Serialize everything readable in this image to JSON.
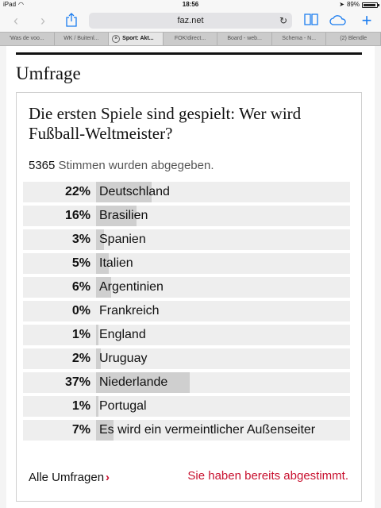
{
  "status": {
    "device": "iPad",
    "time": "18:56",
    "battery": "89%"
  },
  "toolbar": {
    "url": "faz.net"
  },
  "tabs": [
    "'Was de voo...",
    "WK / Buitenl...",
    "Sport: Akt...",
    "FOK!direct...",
    "Board - web...",
    "Schema - N...",
    "(2) Blendle"
  ],
  "page": {
    "section_title": "Umfrage",
    "question": "Die ersten Spiele sind gespielt: Wer wird Fußball-Weltmeister?",
    "votes_count": "5365",
    "votes_text": "Stimmen wurden abgegeben.",
    "results": [
      {
        "pct": "22%",
        "label": "Deutschland",
        "value": 22
      },
      {
        "pct": "16%",
        "label": "Brasilien",
        "value": 16
      },
      {
        "pct": "3%",
        "label": "Spanien",
        "value": 3
      },
      {
        "pct": "5%",
        "label": "Italien",
        "value": 5
      },
      {
        "pct": "6%",
        "label": "Argentinien",
        "value": 6
      },
      {
        "pct": "0%",
        "label": "Frankreich",
        "value": 0
      },
      {
        "pct": "1%",
        "label": "England",
        "value": 1
      },
      {
        "pct": "2%",
        "label": "Uruguay",
        "value": 2
      },
      {
        "pct": "37%",
        "label": "Niederlande",
        "value": 37
      },
      {
        "pct": "1%",
        "label": "Portugal",
        "value": 1
      },
      {
        "pct": "7%",
        "label": "Es wird ein vermeintlicher Außenseiter",
        "value": 7
      }
    ],
    "all_polls": "Alle Umfragen",
    "voted_message": "Sie haben bereits abgestimmt."
  }
}
